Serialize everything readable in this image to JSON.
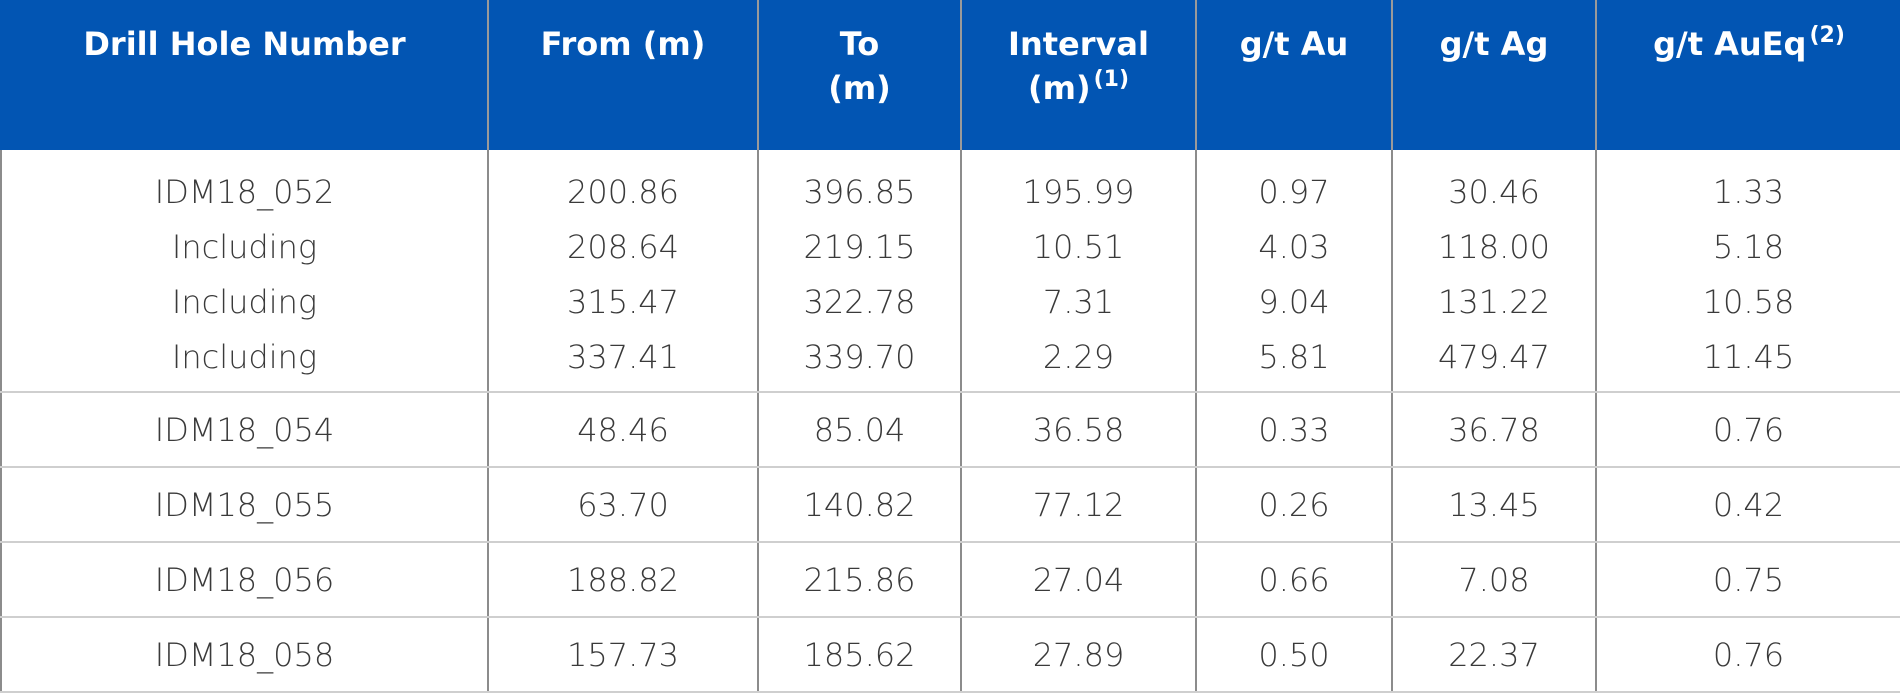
{
  "table": {
    "headers": [
      {
        "text": "Drill Hole Number",
        "line2": "",
        "sup": ""
      },
      {
        "text": "From (m)",
        "line2": "",
        "sup": ""
      },
      {
        "text": "To",
        "line2": "(m)",
        "sup": ""
      },
      {
        "text": "Interval",
        "line2": "(m)",
        "sup": "(1)"
      },
      {
        "text": "g/t Au",
        "line2": "",
        "sup": ""
      },
      {
        "text": "g/t Ag",
        "line2": "",
        "sup": ""
      },
      {
        "text": "g/t AuEq",
        "line2": "",
        "sup": "(2)"
      }
    ],
    "groups": [
      {
        "rows": [
          [
            "IDM18_052",
            "200.86",
            "396.85",
            "195.99",
            "0.97",
            "30.46",
            "1.33"
          ],
          [
            "Including",
            "208.64",
            "219.15",
            "10.51",
            "4.03",
            "118.00",
            "5.18"
          ],
          [
            "Including",
            "315.47",
            "322.78",
            "7.31",
            "9.04",
            "131.22",
            "10.58"
          ],
          [
            "Including",
            "337.41",
            "339.70",
            "2.29",
            "5.81",
            "479.47",
            "11.45"
          ]
        ]
      },
      {
        "rows": [
          [
            "IDM18_054",
            "48.46",
            "85.04",
            "36.58",
            "0.33",
            "36.78",
            "0.76"
          ]
        ]
      },
      {
        "rows": [
          [
            "IDM18_055",
            "63.70",
            "140.82",
            "77.12",
            "0.26",
            "13.45",
            "0.42"
          ]
        ]
      },
      {
        "rows": [
          [
            "IDM18_056",
            "188.82",
            "215.86",
            "27.04",
            "0.66",
            "7.08",
            "0.75"
          ]
        ]
      },
      {
        "rows": [
          [
            "IDM18_058",
            "157.73",
            "185.62",
            "27.89",
            "0.50",
            "22.37",
            "0.76"
          ]
        ]
      }
    ]
  },
  "colors": {
    "header_bg": "#0255b3",
    "header_text": "#ffffff",
    "body_text": "#3a3a3a",
    "border": "#8c8c8c"
  }
}
